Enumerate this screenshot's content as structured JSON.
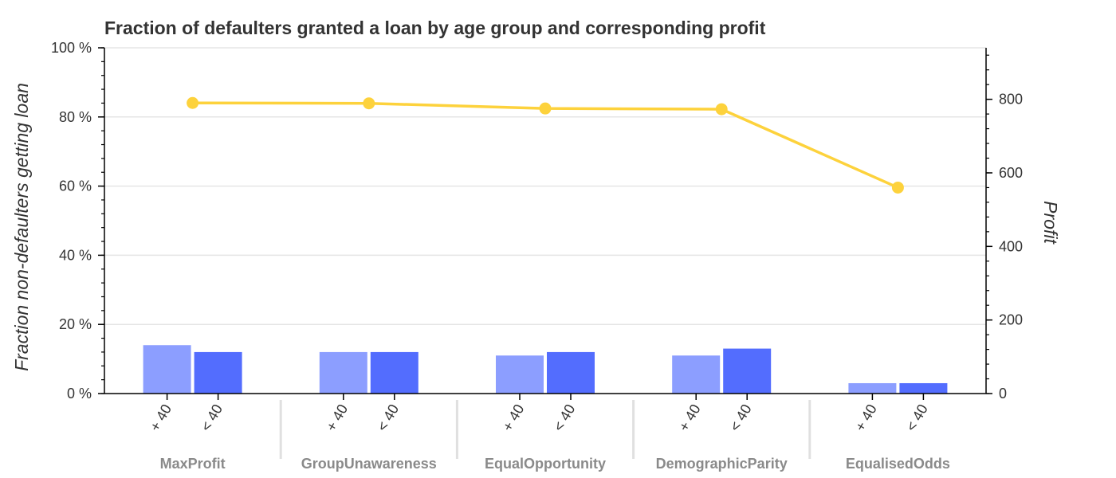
{
  "chart_data": {
    "type": "bar",
    "title": "Fraction of defaulters granted a loan by age group and corresponding profit",
    "y_left": {
      "label": "Fraction non-defaulters getting loan",
      "range": [
        0,
        100
      ],
      "unit": "%",
      "ticks": [
        0,
        20,
        40,
        60,
        80,
        100
      ],
      "tick_labels": [
        "0 %",
        "20 %",
        "40 %",
        "60 %",
        "80 %",
        "100 %"
      ]
    },
    "y_right": {
      "label": "Profit",
      "range": [
        0,
        940
      ],
      "ticks": [
        0,
        200,
        400,
        600,
        800
      ],
      "tick_labels": [
        "0",
        "200",
        "400",
        "600",
        "800"
      ]
    },
    "categories": [
      "MaxProfit",
      "GroupUnawareness",
      "EqualOpportunity",
      "DemographicParity",
      "EqualisedOdds"
    ],
    "subcategories": [
      "+ 40",
      "< 40"
    ],
    "series": [
      {
        "values": [
          14,
          12,
          11,
          11,
          3
        ],
        "color": "#8c9eff"
      },
      {
        "values": [
          12,
          12,
          12,
          13,
          3
        ],
        "color": "#536dfe"
      }
    ],
    "profit_line": {
      "axis": "right",
      "values": [
        790,
        789,
        775,
        773,
        560
      ],
      "color": "#fdd23c"
    },
    "grid": true
  }
}
